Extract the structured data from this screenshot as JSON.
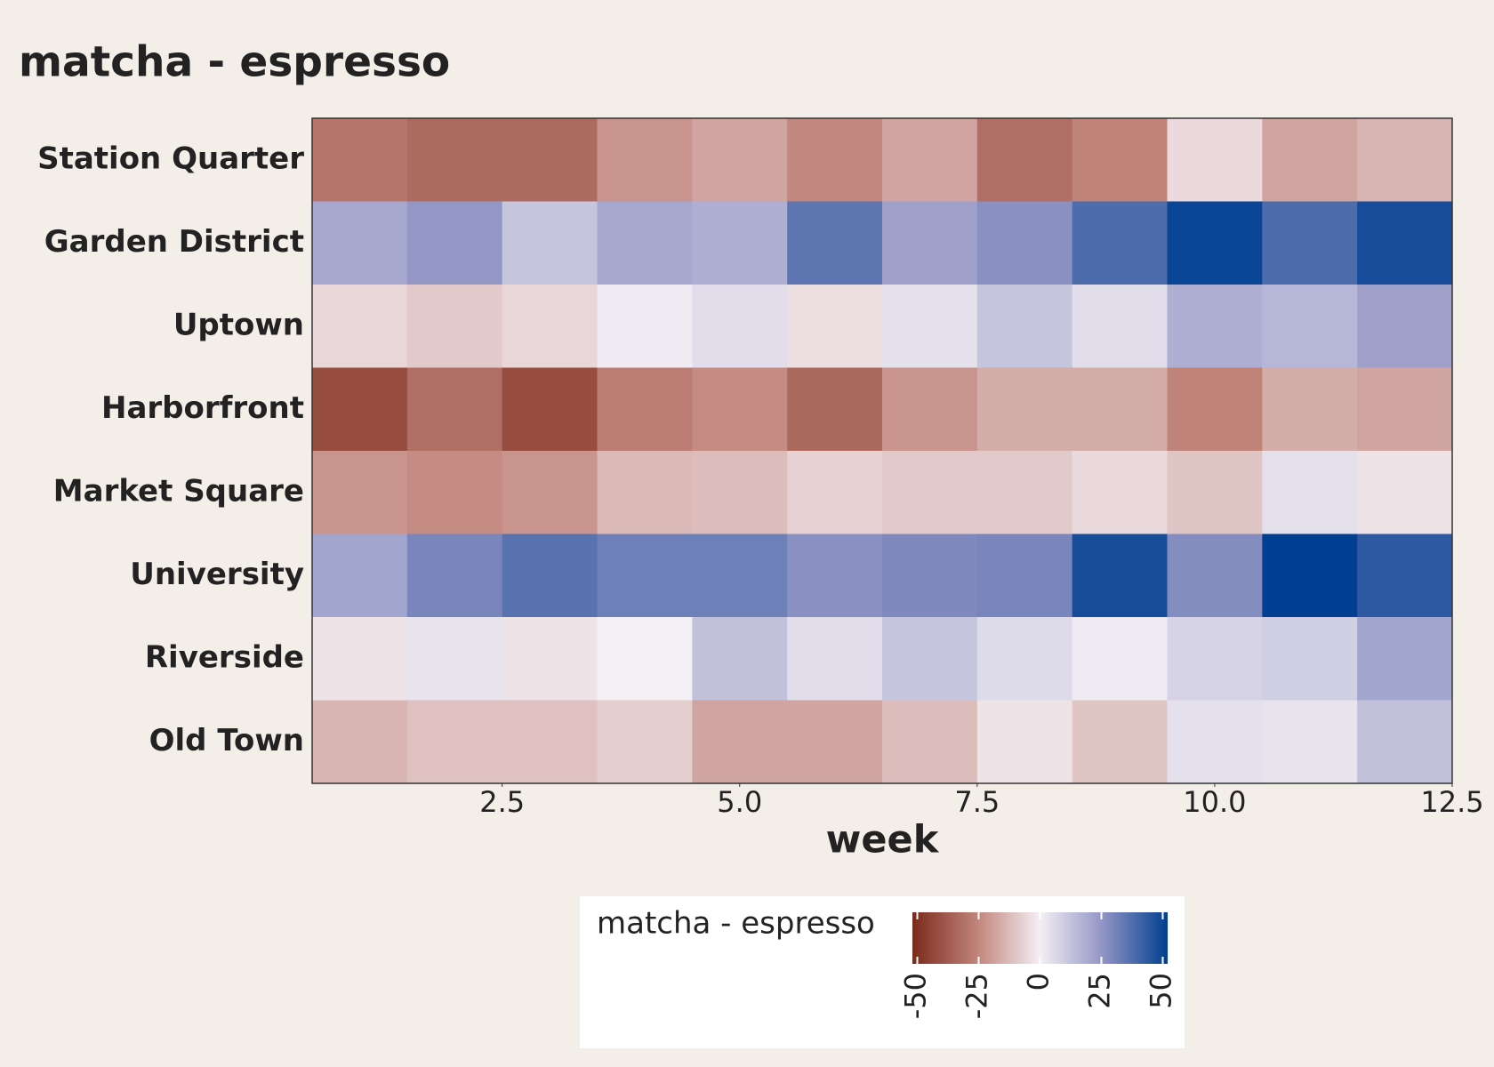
{
  "chart_data": {
    "type": "heatmap",
    "title": "matcha - espresso",
    "x_label": "week",
    "x": [
      1,
      2,
      3,
      4,
      5,
      6,
      7,
      8,
      9,
      10,
      11,
      12
    ],
    "rows": [
      "Station Quarter",
      "Garden District",
      "Uptown",
      "Harborfront",
      "Market Square",
      "University",
      "Riverside",
      "Old Town"
    ],
    "values": [
      [
        -30,
        -33,
        -33,
        -22,
        -18,
        -25,
        -18,
        -32,
        -26,
        -5,
        -18,
        -14
      ],
      [
        20,
        25,
        12,
        20,
        18,
        35,
        22,
        27,
        38,
        50,
        38,
        48
      ],
      [
        -6,
        -9,
        -6,
        1,
        5,
        -4,
        4,
        12,
        5,
        18,
        16,
        22
      ],
      [
        -42,
        -32,
        -42,
        -28,
        -24,
        -34,
        -22,
        -16,
        -16,
        -26,
        -16,
        -18
      ],
      [
        -22,
        -24,
        -22,
        -13,
        -12,
        -7,
        -9,
        -9,
        -5,
        -10,
        4,
        -3
      ],
      [
        21,
        30,
        36,
        32,
        32,
        27,
        29,
        30,
        48,
        28,
        52,
        44
      ],
      [
        -3,
        3,
        -3,
        0,
        13,
        5,
        12,
        6,
        1,
        8,
        9,
        21
      ],
      [
        -14,
        -11,
        -11,
        -8,
        -18,
        -18,
        -12,
        -3,
        -10,
        4,
        3,
        13
      ]
    ],
    "xlim": [
      0.5,
      12.5
    ],
    "xticks": [
      2.5,
      {
        "value": 5,
        "label": "5.0"
      },
      7.5,
      {
        "value": 10,
        "label": "10.0"
      },
      12.5
    ],
    "legend_title": "matcha - espresso",
    "clim": [
      -52,
      52
    ],
    "cticks": [
      -50,
      -25,
      0,
      25,
      50
    ],
    "colorscale": [
      "#7b2a1a",
      "#c0837a",
      "#f4eff4",
      "#8f93c4",
      "#003f91"
    ]
  }
}
